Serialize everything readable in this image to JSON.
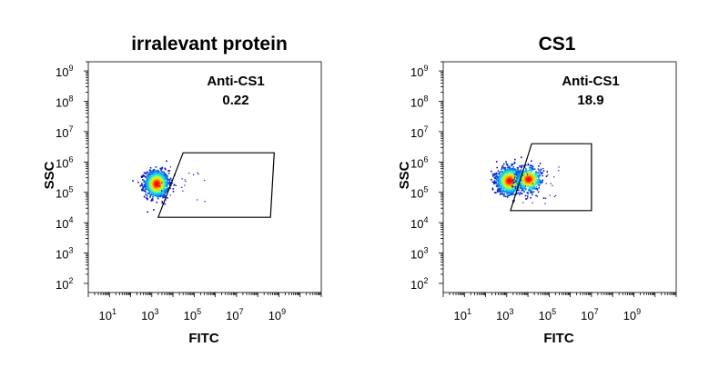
{
  "chart_data": [
    {
      "type": "scatter",
      "title": "irralevant protein",
      "xlabel": "FITC",
      "ylabel": "SSC",
      "x_scale": "log",
      "y_scale": "log",
      "xlim": [
        1,
        100000000000
      ],
      "ylim": [
        50,
        2000000000
      ],
      "x_ticks": [
        {
          "base": "10",
          "exp": "1",
          "value": 10
        },
        {
          "base": "10",
          "exp": "3",
          "value": 1000
        },
        {
          "base": "10",
          "exp": "5",
          "value": 100000
        },
        {
          "base": "10",
          "exp": "7",
          "value": 10000000
        },
        {
          "base": "10",
          "exp": "9",
          "value": 1000000000
        }
      ],
      "y_ticks": [
        {
          "base": "10",
          "exp": "2",
          "value": 100
        },
        {
          "base": "10",
          "exp": "3",
          "value": 1000
        },
        {
          "base": "10",
          "exp": "4",
          "value": 10000
        },
        {
          "base": "10",
          "exp": "5",
          "value": 100000
        },
        {
          "base": "10",
          "exp": "6",
          "value": 1000000
        },
        {
          "base": "10",
          "exp": "7",
          "value": 10000000
        },
        {
          "base": "10",
          "exp": "8",
          "value": 100000000
        },
        {
          "base": "10",
          "exp": "9",
          "value": 1000000000
        }
      ],
      "gate": {
        "name": "Anti-CS1",
        "value": "0.22",
        "vertices": [
          [
            2000,
            15000
          ],
          [
            30000,
            2000000
          ],
          [
            600000000,
            2000000
          ],
          [
            400000000,
            15000
          ]
        ]
      },
      "populations": [
        {
          "center_log": [
            3.2,
            5.3
          ],
          "spread_log": [
            0.28,
            0.22
          ],
          "count": 1100
        }
      ],
      "grid": false,
      "legend": "none"
    },
    {
      "type": "scatter",
      "title": "CS1",
      "xlabel": "FITC",
      "ylabel": "SSC",
      "x_scale": "log",
      "y_scale": "log",
      "xlim": [
        1,
        100000000000
      ],
      "ylim": [
        50,
        2000000000
      ],
      "x_ticks": [
        {
          "base": "10",
          "exp": "1",
          "value": 10
        },
        {
          "base": "10",
          "exp": "3",
          "value": 1000
        },
        {
          "base": "10",
          "exp": "5",
          "value": 100000
        },
        {
          "base": "10",
          "exp": "7",
          "value": 10000000
        },
        {
          "base": "10",
          "exp": "9",
          "value": 1000000000
        }
      ],
      "y_ticks": [
        {
          "base": "10",
          "exp": "2",
          "value": 100
        },
        {
          "base": "10",
          "exp": "3",
          "value": 1000
        },
        {
          "base": "10",
          "exp": "4",
          "value": 10000
        },
        {
          "base": "10",
          "exp": "5",
          "value": 100000
        },
        {
          "base": "10",
          "exp": "6",
          "value": 1000000
        },
        {
          "base": "10",
          "exp": "7",
          "value": 10000000
        },
        {
          "base": "10",
          "exp": "8",
          "value": 100000000
        },
        {
          "base": "10",
          "exp": "9",
          "value": 1000000000
        }
      ],
      "gate": {
        "name": "Anti-CS1",
        "value": "18.9",
        "vertices": [
          [
            1500,
            25000
          ],
          [
            15000,
            4000000
          ],
          [
            10000000,
            4000000
          ],
          [
            10000000,
            25000
          ]
        ]
      },
      "populations": [
        {
          "center_log": [
            3.1,
            5.4
          ],
          "spread_log": [
            0.3,
            0.22
          ],
          "count": 1000
        },
        {
          "center_log": [
            4.0,
            5.45
          ],
          "spread_log": [
            0.3,
            0.2
          ],
          "count": 550
        }
      ],
      "grid": false,
      "legend": "none"
    }
  ],
  "colors": {
    "density_low": "#0000c8",
    "density_mid": "#00d2ff",
    "density_midhigh": "#b4ff3c",
    "density_high": "#ffc800",
    "density_peak": "#ff0000",
    "gate_line": "#000000",
    "frame": "#000000"
  }
}
